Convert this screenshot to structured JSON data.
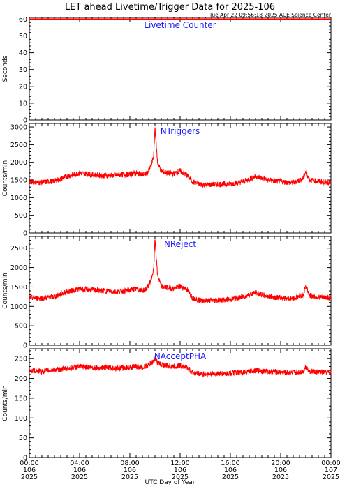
{
  "title": "LET ahead Livetime/Trigger Data for 2025-106",
  "timestamp": "Tue Apr 22 09:56:18 2025 ACE Science Center",
  "xlabel": "UTC Day of Year",
  "x_ticks": [
    {
      "time": "00:00",
      "day": "106",
      "year": "2025"
    },
    {
      "time": "04:00",
      "day": "106",
      "year": "2025"
    },
    {
      "time": "08:00",
      "day": "106",
      "year": "2025"
    },
    {
      "time": "12:00",
      "day": "106",
      "year": "2025"
    },
    {
      "time": "16:00",
      "day": "106",
      "year": "2025"
    },
    {
      "time": "20:00",
      "day": "106",
      "year": "2025"
    },
    {
      "time": "00:00",
      "day": "107",
      "year": "2025"
    }
  ],
  "colors": {
    "series": "#ff0000",
    "label": "#1a1aff",
    "axis": "#000000"
  },
  "chart_data": [
    {
      "type": "line",
      "label": "Livetime Counter",
      "ylabel": "Seconds",
      "xlim": [
        0,
        24
      ],
      "ylim": [
        0,
        61
      ],
      "y_ticks": [
        0,
        10,
        20,
        30,
        40,
        50,
        60
      ],
      "x": [
        0,
        3,
        6,
        9,
        12,
        15,
        18,
        21,
        24
      ],
      "values": [
        60,
        60,
        60,
        60,
        60,
        60,
        60,
        60,
        60
      ]
    },
    {
      "type": "line",
      "label": "NTriggers",
      "ylabel": "Counts/min",
      "xlim": [
        0,
        24
      ],
      "ylim": [
        0,
        3100
      ],
      "y_ticks": [
        0,
        500,
        1000,
        1500,
        2000,
        2500,
        3000
      ],
      "x": [
        0,
        1,
        2,
        3,
        4,
        5,
        6,
        7,
        8,
        8.5,
        9,
        9.4,
        9.7,
        9.9,
        10.0,
        10.2,
        10.5,
        11,
        11.5,
        12,
        12.5,
        13,
        13.5,
        14,
        15,
        16,
        17,
        18,
        19,
        20,
        21,
        21.8,
        22,
        22.3,
        23,
        24
      ],
      "values": [
        1450,
        1430,
        1470,
        1600,
        1700,
        1650,
        1620,
        1640,
        1660,
        1700,
        1650,
        1700,
        1900,
        2200,
        3000,
        2000,
        1750,
        1700,
        1680,
        1750,
        1650,
        1450,
        1380,
        1360,
        1380,
        1390,
        1450,
        1600,
        1500,
        1450,
        1420,
        1550,
        1750,
        1500,
        1460,
        1430
      ]
    },
    {
      "type": "line",
      "label": "NReject",
      "ylabel": "Counts/min",
      "xlim": [
        0,
        24
      ],
      "ylim": [
        0,
        2800
      ],
      "y_ticks": [
        0,
        500,
        1000,
        1500,
        2000,
        2500
      ],
      "x": [
        0,
        1,
        2,
        3,
        4,
        5,
        6,
        7,
        8,
        8.5,
        9,
        9.4,
        9.7,
        9.9,
        10.0,
        10.2,
        10.5,
        11,
        11.5,
        12,
        12.5,
        13,
        13.5,
        14,
        15,
        16,
        17,
        18,
        19,
        20,
        21,
        21.8,
        22,
        22.3,
        23,
        24
      ],
      "values": [
        1230,
        1210,
        1250,
        1380,
        1450,
        1420,
        1400,
        1380,
        1420,
        1450,
        1400,
        1480,
        1700,
        1950,
        2750,
        1800,
        1520,
        1480,
        1460,
        1520,
        1450,
        1220,
        1160,
        1150,
        1160,
        1180,
        1250,
        1350,
        1260,
        1220,
        1200,
        1300,
        1550,
        1280,
        1240,
        1220
      ]
    },
    {
      "type": "line",
      "label": "NAcceptPHA",
      "ylabel": "Counts/min",
      "xlim": [
        0,
        24
      ],
      "ylim": [
        0,
        275
      ],
      "y_ticks": [
        0,
        50,
        100,
        150,
        200,
        250
      ],
      "x": [
        0,
        1,
        2,
        3,
        4,
        5,
        6,
        7,
        8,
        8.5,
        9,
        9.4,
        9.7,
        9.9,
        10.0,
        10.2,
        10.5,
        11,
        11.5,
        12,
        12.5,
        13,
        13.5,
        14,
        15,
        16,
        17,
        18,
        19,
        20,
        21,
        21.8,
        22,
        22.3,
        23,
        24
      ],
      "values": [
        220,
        218,
        222,
        225,
        230,
        228,
        227,
        226,
        228,
        230,
        228,
        232,
        238,
        245,
        250,
        240,
        235,
        232,
        230,
        233,
        228,
        215,
        212,
        210,
        212,
        213,
        215,
        220,
        218,
        215,
        214,
        218,
        230,
        218,
        216,
        215
      ]
    }
  ]
}
